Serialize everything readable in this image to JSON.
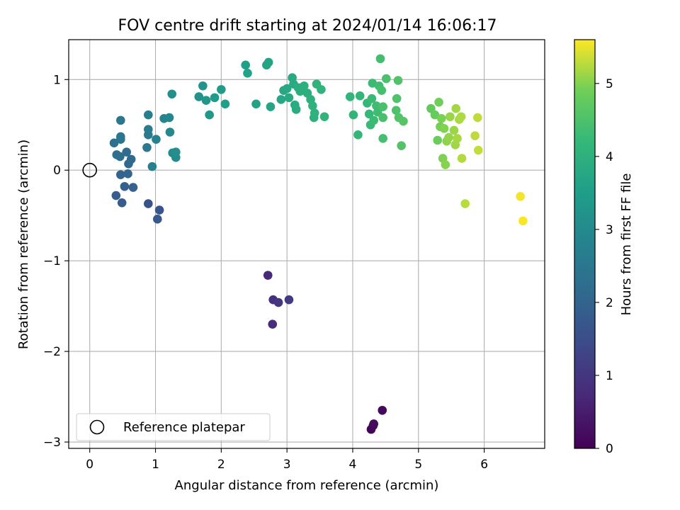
{
  "chart_data": {
    "type": "scatter",
    "title": "FOV centre drift starting at 2024/01/14 16:06:17",
    "xlabel": "Angular distance from reference (arcmin)",
    "ylabel": "Rotation from reference (arcmin)",
    "xlim": [
      -0.32,
      6.92
    ],
    "ylim": [
      -3.07,
      1.44
    ],
    "xticks": [
      "0",
      "1",
      "2",
      "3",
      "4",
      "5",
      "6"
    ],
    "yticks": [
      "−3",
      "−2",
      "−1",
      "0",
      "1"
    ],
    "grid": true,
    "legend": {
      "position": "lower-left",
      "entries": [
        {
          "label": "Reference platepar",
          "marker": "open-circle"
        }
      ]
    },
    "colorbar": {
      "label": "Hours from first FF file",
      "range": [
        0,
        5.6
      ],
      "ticks": [
        "0",
        "1",
        "2",
        "3",
        "4",
        "5"
      ],
      "colormap": "viridis"
    },
    "reference_point": {
      "x": 0,
      "y": 0
    },
    "points": [
      {
        "x": 4.28,
        "y": -2.86,
        "h": 0.05
      },
      {
        "x": 4.31,
        "y": -2.82,
        "h": 0.1
      },
      {
        "x": 4.45,
        "y": -2.65,
        "h": 0.15
      },
      {
        "x": 4.32,
        "y": -2.8,
        "h": 0.2
      },
      {
        "x": 2.71,
        "y": -1.16,
        "h": 0.7
      },
      {
        "x": 2.78,
        "y": -1.7,
        "h": 0.8
      },
      {
        "x": 2.79,
        "y": -1.43,
        "h": 0.9
      },
      {
        "x": 2.87,
        "y": -1.46,
        "h": 1.0
      },
      {
        "x": 3.03,
        "y": -1.43,
        "h": 1.1
      },
      {
        "x": 0.89,
        "y": -0.37,
        "h": 1.6
      },
      {
        "x": 1.06,
        "y": -0.44,
        "h": 1.7
      },
      {
        "x": 1.03,
        "y": -0.54,
        "h": 1.75
      },
      {
        "x": 0.49,
        "y": -0.36,
        "h": 1.8
      },
      {
        "x": 0.4,
        "y": -0.28,
        "h": 1.85
      },
      {
        "x": 0.53,
        "y": -0.18,
        "h": 1.9
      },
      {
        "x": 0.66,
        "y": -0.19,
        "h": 1.95
      },
      {
        "x": 0.47,
        "y": -0.05,
        "h": 2.0
      },
      {
        "x": 0.58,
        "y": -0.04,
        "h": 2.05
      },
      {
        "x": 0.59,
        "y": 0.07,
        "h": 2.1
      },
      {
        "x": 0.63,
        "y": 0.12,
        "h": 2.15
      },
      {
        "x": 0.56,
        "y": 0.2,
        "h": 2.2
      },
      {
        "x": 0.41,
        "y": 0.17,
        "h": 2.25
      },
      {
        "x": 0.46,
        "y": 0.15,
        "h": 2.3
      },
      {
        "x": 0.37,
        "y": 0.3,
        "h": 2.35
      },
      {
        "x": 0.47,
        "y": 0.34,
        "h": 2.4
      },
      {
        "x": 0.47,
        "y": 0.37,
        "h": 2.45
      },
      {
        "x": 0.47,
        "y": 0.55,
        "h": 2.5
      },
      {
        "x": 0.87,
        "y": 0.25,
        "h": 2.55
      },
      {
        "x": 0.89,
        "y": 0.39,
        "h": 2.6
      },
      {
        "x": 0.89,
        "y": 0.45,
        "h": 2.65
      },
      {
        "x": 0.89,
        "y": 0.61,
        "h": 2.7
      },
      {
        "x": 0.95,
        "y": 0.04,
        "h": 2.75
      },
      {
        "x": 1.01,
        "y": 0.34,
        "h": 2.8
      },
      {
        "x": 1.13,
        "y": 0.57,
        "h": 2.85
      },
      {
        "x": 1.21,
        "y": 0.58,
        "h": 2.9
      },
      {
        "x": 1.22,
        "y": 0.42,
        "h": 2.95
      },
      {
        "x": 1.26,
        "y": 0.19,
        "h": 3.0
      },
      {
        "x": 1.31,
        "y": 0.14,
        "h": 3.05
      },
      {
        "x": 1.31,
        "y": 0.2,
        "h": 3.1
      },
      {
        "x": 1.25,
        "y": 0.84,
        "h": 3.15
      },
      {
        "x": 1.66,
        "y": 0.81,
        "h": 3.2
      },
      {
        "x": 1.72,
        "y": 0.93,
        "h": 3.25
      },
      {
        "x": 1.77,
        "y": 0.77,
        "h": 3.3
      },
      {
        "x": 1.82,
        "y": 0.61,
        "h": 3.35
      },
      {
        "x": 1.9,
        "y": 0.8,
        "h": 3.4
      },
      {
        "x": 2.0,
        "y": 0.89,
        "h": 3.45
      },
      {
        "x": 2.06,
        "y": 0.73,
        "h": 3.5
      },
      {
        "x": 2.37,
        "y": 1.16,
        "h": 3.55
      },
      {
        "x": 2.4,
        "y": 1.07,
        "h": 3.6
      },
      {
        "x": 2.53,
        "y": 0.73,
        "h": 3.62
      },
      {
        "x": 2.69,
        "y": 1.16,
        "h": 3.65
      },
      {
        "x": 2.72,
        "y": 1.19,
        "h": 3.68
      },
      {
        "x": 2.75,
        "y": 0.7,
        "h": 3.7
      },
      {
        "x": 2.91,
        "y": 0.78,
        "h": 3.73
      },
      {
        "x": 2.95,
        "y": 0.88,
        "h": 3.75
      },
      {
        "x": 3.0,
        "y": 0.9,
        "h": 3.78
      },
      {
        "x": 3.03,
        "y": 0.8,
        "h": 3.8
      },
      {
        "x": 3.08,
        "y": 1.02,
        "h": 3.82
      },
      {
        "x": 3.1,
        "y": 0.95,
        "h": 3.84
      },
      {
        "x": 3.12,
        "y": 0.72,
        "h": 3.86
      },
      {
        "x": 3.14,
        "y": 0.67,
        "h": 3.88
      },
      {
        "x": 3.17,
        "y": 0.91,
        "h": 3.9
      },
      {
        "x": 3.2,
        "y": 0.87,
        "h": 3.92
      },
      {
        "x": 3.26,
        "y": 0.93,
        "h": 3.94
      },
      {
        "x": 3.31,
        "y": 0.85,
        "h": 3.96
      },
      {
        "x": 3.36,
        "y": 0.78,
        "h": 3.98
      },
      {
        "x": 3.39,
        "y": 0.71,
        "h": 4.0
      },
      {
        "x": 3.41,
        "y": 0.58,
        "h": 4.02
      },
      {
        "x": 3.42,
        "y": 0.63,
        "h": 4.04
      },
      {
        "x": 3.45,
        "y": 0.95,
        "h": 4.06
      },
      {
        "x": 3.52,
        "y": 0.89,
        "h": 4.08
      },
      {
        "x": 3.57,
        "y": 0.59,
        "h": 4.1
      },
      {
        "x": 3.96,
        "y": 0.81,
        "h": 4.12
      },
      {
        "x": 4.01,
        "y": 0.61,
        "h": 4.14
      },
      {
        "x": 4.08,
        "y": 0.39,
        "h": 4.16
      },
      {
        "x": 4.11,
        "y": 0.82,
        "h": 4.18
      },
      {
        "x": 4.22,
        "y": 0.74,
        "h": 4.2
      },
      {
        "x": 4.25,
        "y": 0.62,
        "h": 4.22
      },
      {
        "x": 4.27,
        "y": 0.5,
        "h": 4.24
      },
      {
        "x": 4.29,
        "y": 0.79,
        "h": 4.26
      },
      {
        "x": 4.3,
        "y": 0.96,
        "h": 4.28
      },
      {
        "x": 4.32,
        "y": 0.55,
        "h": 4.3
      },
      {
        "x": 4.36,
        "y": 0.71,
        "h": 4.32
      },
      {
        "x": 4.38,
        "y": 0.64,
        "h": 4.34
      },
      {
        "x": 4.4,
        "y": 0.93,
        "h": 4.36
      },
      {
        "x": 4.42,
        "y": 1.23,
        "h": 4.38
      },
      {
        "x": 4.44,
        "y": 0.88,
        "h": 4.4
      },
      {
        "x": 4.46,
        "y": 0.35,
        "h": 4.42
      },
      {
        "x": 4.46,
        "y": 0.58,
        "h": 4.44
      },
      {
        "x": 4.46,
        "y": 0.7,
        "h": 4.46
      },
      {
        "x": 4.51,
        "y": 1.01,
        "h": 4.48
      },
      {
        "x": 4.66,
        "y": 0.66,
        "h": 4.5
      },
      {
        "x": 4.67,
        "y": 0.79,
        "h": 4.52
      },
      {
        "x": 4.69,
        "y": 0.99,
        "h": 4.54
      },
      {
        "x": 4.7,
        "y": 0.58,
        "h": 4.56
      },
      {
        "x": 4.74,
        "y": 0.27,
        "h": 4.58
      },
      {
        "x": 4.77,
        "y": 0.54,
        "h": 4.6
      },
      {
        "x": 5.19,
        "y": 0.68,
        "h": 4.75
      },
      {
        "x": 5.25,
        "y": 0.61,
        "h": 4.8
      },
      {
        "x": 5.29,
        "y": 0.33,
        "h": 4.85
      },
      {
        "x": 5.31,
        "y": 0.75,
        "h": 4.9
      },
      {
        "x": 5.33,
        "y": 0.48,
        "h": 4.92
      },
      {
        "x": 5.35,
        "y": 0.57,
        "h": 4.95
      },
      {
        "x": 5.37,
        "y": 0.13,
        "h": 4.98
      },
      {
        "x": 5.39,
        "y": 0.46,
        "h": 5.0
      },
      {
        "x": 5.41,
        "y": 0.06,
        "h": 5.02
      },
      {
        "x": 5.43,
        "y": 0.32,
        "h": 5.05
      },
      {
        "x": 5.46,
        "y": 0.36,
        "h": 5.08
      },
      {
        "x": 5.48,
        "y": 0.59,
        "h": 5.1
      },
      {
        "x": 5.54,
        "y": 0.44,
        "h": 5.12
      },
      {
        "x": 5.56,
        "y": 0.28,
        "h": 5.14
      },
      {
        "x": 5.57,
        "y": 0.68,
        "h": 5.16
      },
      {
        "x": 5.59,
        "y": 0.35,
        "h": 5.18
      },
      {
        "x": 5.62,
        "y": 0.56,
        "h": 5.2
      },
      {
        "x": 5.65,
        "y": 0.59,
        "h": 5.22
      },
      {
        "x": 5.66,
        "y": 0.13,
        "h": 5.24
      },
      {
        "x": 5.71,
        "y": -0.37,
        "h": 5.26
      },
      {
        "x": 5.86,
        "y": 0.38,
        "h": 5.28
      },
      {
        "x": 5.9,
        "y": 0.58,
        "h": 5.3
      },
      {
        "x": 5.91,
        "y": 0.22,
        "h": 5.32
      },
      {
        "x": 6.55,
        "y": -0.29,
        "h": 5.55
      },
      {
        "x": 6.59,
        "y": -0.56,
        "h": 5.58
      }
    ]
  }
}
